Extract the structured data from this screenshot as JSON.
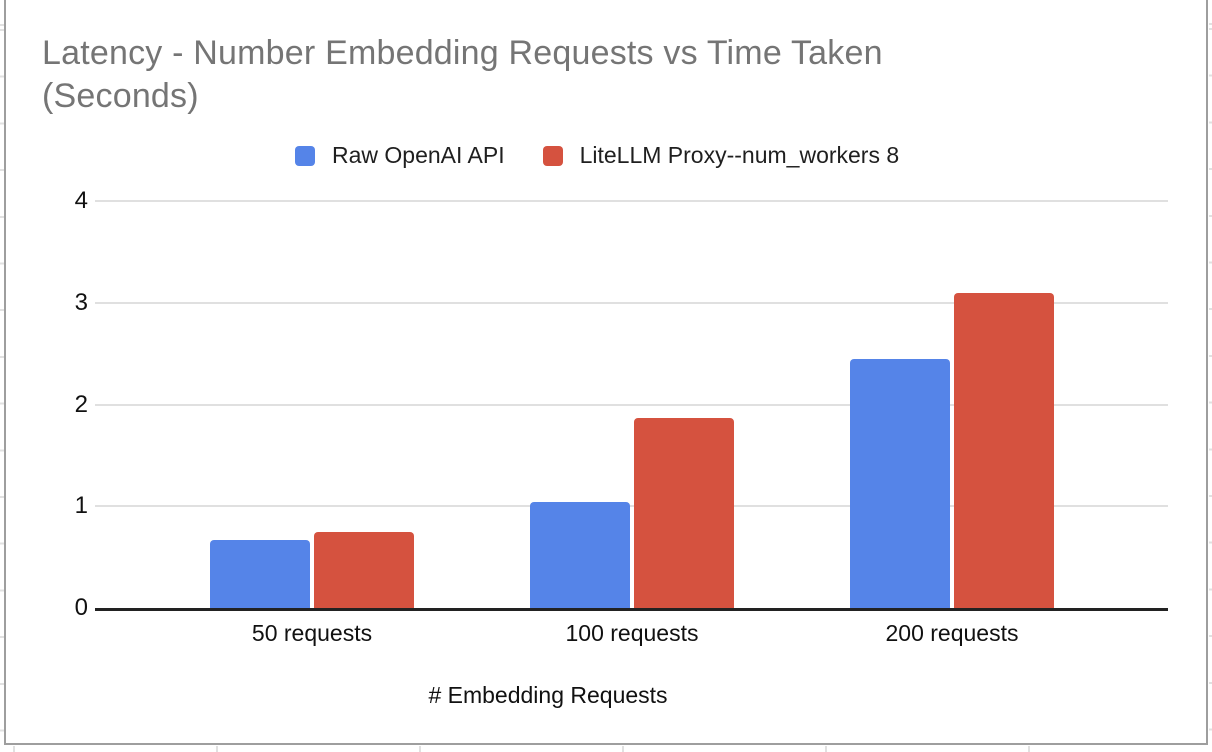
{
  "chart_data": {
    "type": "bar",
    "title": "Latency - Number Embedding Requests vs Time Taken (Seconds)",
    "categories": [
      "50 requests",
      "100 requests",
      "200 requests"
    ],
    "series": [
      {
        "name": "Raw OpenAI API",
        "color": "#5584e8",
        "values": [
          0.67,
          1.04,
          2.45
        ]
      },
      {
        "name": "LiteLLM Proxy--num_workers 8",
        "color": "#d5523f",
        "values": [
          0.75,
          1.87,
          3.1
        ]
      }
    ],
    "xlabel": "# Embedding Requests",
    "ylabel": "",
    "ylim": [
      0,
      4
    ],
    "yticks": [
      0,
      1,
      2,
      3,
      4
    ],
    "grid": true,
    "legend_position": "top",
    "title_color": "#757575",
    "gridline_color": "#e0e0e0",
    "axis_color": "#222222"
  }
}
